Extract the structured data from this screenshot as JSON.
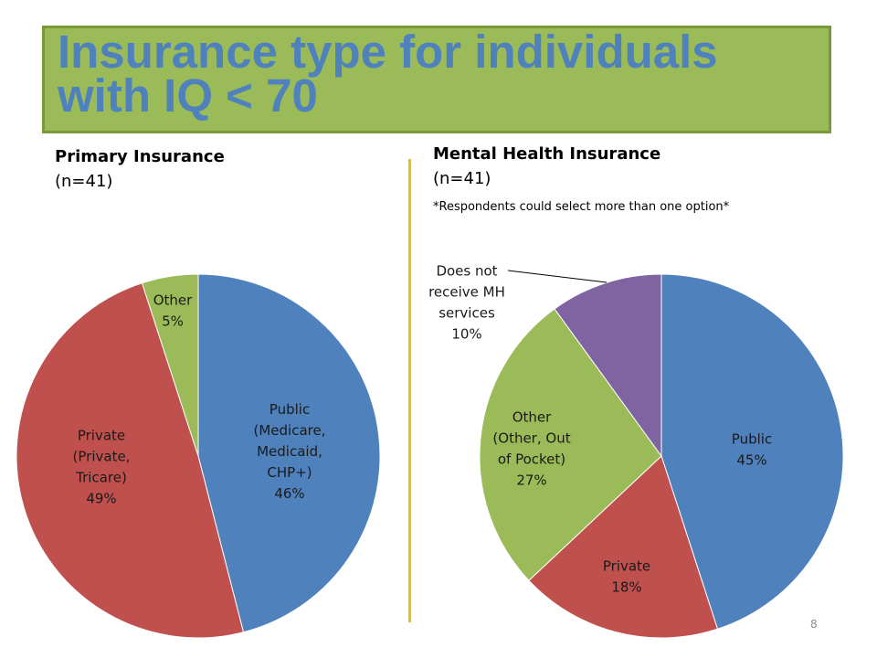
{
  "slide": {
    "title_line1": "Insurance type for individuals",
    "title_line2": "with IQ < 70",
    "page_number": "8"
  },
  "left_heading": {
    "title": "Primary Insurance",
    "n": "(n=41)"
  },
  "right_heading": {
    "title": "Mental Health Insurance",
    "n": "(n=41)",
    "note": "*Respondents could select more than one option*"
  },
  "colors": {
    "title_bg": "#9bbb59",
    "title_text": "#4f81bd",
    "divider": "#f0c000",
    "public": "#4f81bd",
    "private": "#c0504d",
    "other": "#9bbb59",
    "no_mh": "#8064a2"
  },
  "chart_data": [
    {
      "type": "pie",
      "title": "Primary Insurance",
      "slices": [
        {
          "label": [
            "Public",
            "(Medicare,",
            "Medicaid,",
            "CHP+)",
            "46%"
          ],
          "value": 46,
          "color": "#4f81bd"
        },
        {
          "label": [
            "Private",
            "(Private,",
            "Tricare)",
            "49%"
          ],
          "value": 49,
          "color": "#c0504d"
        },
        {
          "label": [
            "Other",
            "5%"
          ],
          "value": 5,
          "color": "#9bbb59"
        }
      ]
    },
    {
      "type": "pie",
      "title": "Mental Health Insurance",
      "slices": [
        {
          "label": [
            "Public",
            "45%"
          ],
          "value": 45,
          "color": "#4f81bd"
        },
        {
          "label": [
            "Private",
            "18%"
          ],
          "value": 18,
          "color": "#c0504d"
        },
        {
          "label": [
            "Other",
            "(Other, Out",
            "of Pocket)",
            "27%"
          ],
          "value": 27,
          "color": "#9bbb59"
        },
        {
          "label": [
            "Does not",
            "receive MH",
            "services",
            "10%"
          ],
          "value": 10,
          "color": "#8064a2"
        }
      ]
    }
  ]
}
